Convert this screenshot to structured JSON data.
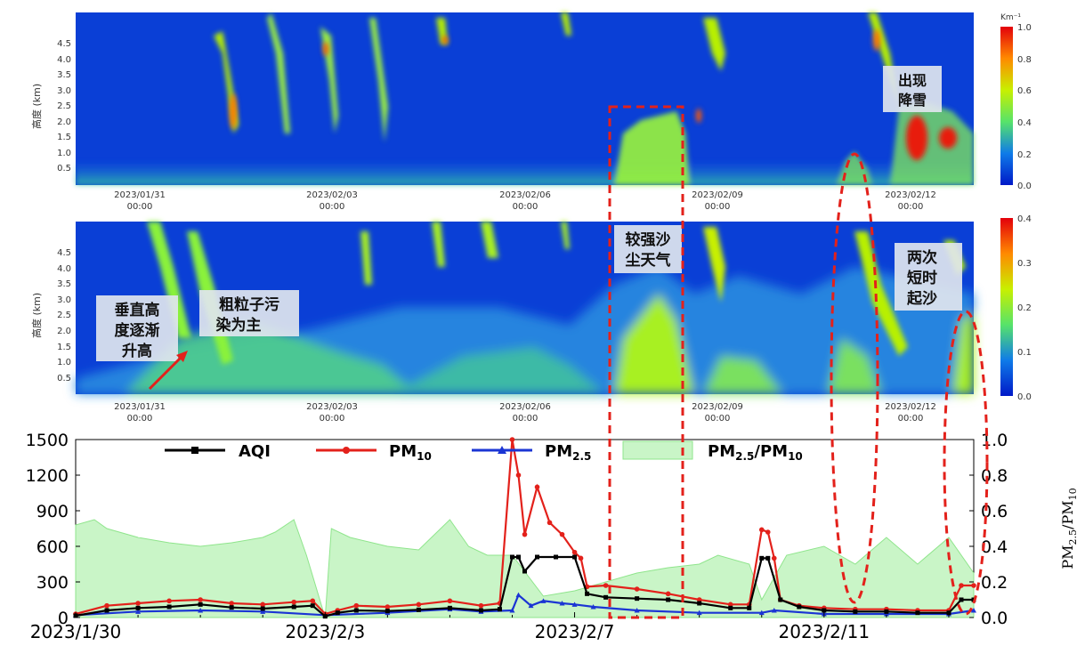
{
  "colors": {
    "lidar_background": "#0a3fd6",
    "lidar_shallow": "#1f7fe0",
    "aerosol_green": "#8af23a",
    "aerosol_yellow": "#d6f000",
    "cloud_red": "#e81e10",
    "ratio_fill": "#c9f5c7",
    "ratio_line": "#8fe58c",
    "aqi": "#000000",
    "pm10": "#e3211b",
    "pm25": "#1b35d4",
    "event_box": "#e3211b",
    "arrow": "#e3211b",
    "label_bg": "#dfe5ee"
  },
  "panel_top": {
    "ylabel": "高度 (km)",
    "yticks": [
      "0.5",
      "1.0",
      "1.5",
      "2.0",
      "2.5",
      "3.0",
      "3.5",
      "4.0",
      "4.5"
    ],
    "xticks": [
      {
        "date": "2023/01/31",
        "time": "00:00"
      },
      {
        "date": "2023/02/03",
        "time": "00:00"
      },
      {
        "date": "2023/02/06",
        "time": "00:00"
      },
      {
        "date": "2023/02/09",
        "time": "00:00"
      },
      {
        "date": "2023/02/12",
        "time": "00:00"
      }
    ],
    "colorbar_unit": "Km⁻¹",
    "colorbar_ticks": [
      "0.0",
      "0.2",
      "0.4",
      "0.6",
      "0.8",
      "1.0"
    ],
    "annotation": [
      "出现",
      "降雪"
    ]
  },
  "panel_mid": {
    "ylabel": "高度 (km)",
    "yticks": [
      "0.5",
      "1.0",
      "1.5",
      "2.0",
      "2.5",
      "3.0",
      "3.5",
      "4.0",
      "4.5"
    ],
    "xticks": [
      {
        "date": "2023/01/31",
        "time": "00:00"
      },
      {
        "date": "2023/02/03",
        "time": "00:00"
      },
      {
        "date": "2023/02/06",
        "time": "00:00"
      },
      {
        "date": "2023/02/09",
        "time": "00:00"
      },
      {
        "date": "2023/02/12",
        "time": "00:00"
      }
    ],
    "colorbar_ticks": [
      "0.0",
      "0.1",
      "0.2",
      "0.3",
      "0.4"
    ],
    "annotations": {
      "vertical": [
        "垂直高",
        "度逐渐",
        "升高"
      ],
      "coarse": [
        "粗粒子污",
        "染为主"
      ],
      "dust": [
        "较强沙",
        "尘天气"
      ],
      "twice": [
        "两次",
        "短时",
        "起沙"
      ]
    }
  },
  "chart_data": {
    "type": "line",
    "x_labels": [
      "2023/1/30",
      "2023/2/3",
      "2023/2/7",
      "2023/2/11"
    ],
    "x_range_days": [
      0,
      14.4
    ],
    "ylim": [
      0,
      1500
    ],
    "yticks": [
      "0",
      "300",
      "600",
      "900",
      "1200",
      "1500"
    ],
    "y2lim": [
      0,
      1.0
    ],
    "y2ticks": [
      "0.0",
      "0.2",
      "0.4",
      "0.6",
      "0.8",
      "1.0"
    ],
    "y2label": "PM2.5/PM10",
    "legend": [
      "AQI",
      "PM10",
      "PM2.5",
      "PM2.5/PM10"
    ],
    "series": [
      {
        "name": "AQI",
        "key": "aqi",
        "x": [
          0,
          0.5,
          1,
          1.5,
          2,
          2.5,
          3,
          3.5,
          3.8,
          4,
          4.2,
          4.5,
          5,
          5.5,
          6,
          6.5,
          6.8,
          7,
          7.1,
          7.2,
          7.4,
          7.7,
          8,
          8.2,
          8.5,
          9,
          9.5,
          10,
          10.5,
          10.8,
          11,
          11.1,
          11.3,
          11.6,
          12,
          12.5,
          13,
          13.5,
          14,
          14.2,
          14.4
        ],
        "y": [
          15,
          60,
          80,
          90,
          110,
          85,
          75,
          90,
          100,
          10,
          40,
          60,
          55,
          65,
          80,
          60,
          70,
          510,
          510,
          390,
          510,
          510,
          510,
          200,
          170,
          160,
          150,
          120,
          80,
          80,
          500,
          500,
          150,
          90,
          60,
          50,
          50,
          40,
          40,
          150,
          150
        ]
      },
      {
        "name": "PM10",
        "key": "pm10",
        "x": [
          0,
          0.5,
          1,
          1.5,
          2,
          2.5,
          3,
          3.5,
          3.8,
          4,
          4.2,
          4.5,
          5,
          5.5,
          6,
          6.5,
          6.8,
          7,
          7.1,
          7.2,
          7.4,
          7.6,
          7.8,
          8,
          8.1,
          8.2,
          8.5,
          9,
          9.5,
          10,
          10.5,
          10.8,
          11,
          11.1,
          11.2,
          11.3,
          11.6,
          12,
          12.5,
          13,
          13.5,
          14,
          14.2,
          14.4
        ],
        "y": [
          30,
          100,
          120,
          140,
          150,
          120,
          110,
          130,
          140,
          30,
          60,
          100,
          90,
          110,
          140,
          100,
          120,
          1500,
          1200,
          700,
          1100,
          800,
          700,
          550,
          500,
          260,
          270,
          240,
          200,
          150,
          110,
          110,
          740,
          720,
          500,
          150,
          100,
          80,
          70,
          70,
          60,
          60,
          270,
          270
        ]
      },
      {
        "name": "PM2.5",
        "key": "pm25",
        "x": [
          0,
          1,
          2,
          3,
          4,
          5,
          6,
          6.5,
          7,
          7.1,
          7.3,
          7.5,
          7.8,
          8,
          8.3,
          9,
          10,
          11,
          11.2,
          12,
          13,
          14,
          14.4
        ],
        "y": [
          20,
          50,
          60,
          50,
          20,
          40,
          70,
          50,
          60,
          190,
          100,
          140,
          120,
          110,
          90,
          60,
          40,
          40,
          60,
          30,
          30,
          30,
          60
        ]
      },
      {
        "name": "PM2.5/PM10",
        "key": "ratio",
        "x": [
          0,
          0.3,
          0.5,
          1,
          1.5,
          2,
          2.5,
          3,
          3.2,
          3.5,
          3.7,
          4,
          4.1,
          4.4,
          5,
          5.5,
          6,
          6.3,
          6.6,
          7,
          7.5,
          8,
          8.5,
          9,
          9.5,
          10,
          10.3,
          10.8,
          11,
          11.4,
          12,
          12.5,
          13,
          13.5,
          14,
          14.4
        ],
        "y": [
          0.52,
          0.55,
          0.5,
          0.45,
          0.42,
          0.4,
          0.42,
          0.45,
          0.48,
          0.55,
          0.35,
          0.0,
          0.5,
          0.45,
          0.4,
          0.38,
          0.55,
          0.4,
          0.35,
          0.35,
          0.12,
          0.15,
          0.2,
          0.25,
          0.28,
          0.3,
          0.35,
          0.3,
          0.1,
          0.35,
          0.4,
          0.3,
          0.45,
          0.3,
          0.45,
          0.25
        ]
      }
    ]
  }
}
